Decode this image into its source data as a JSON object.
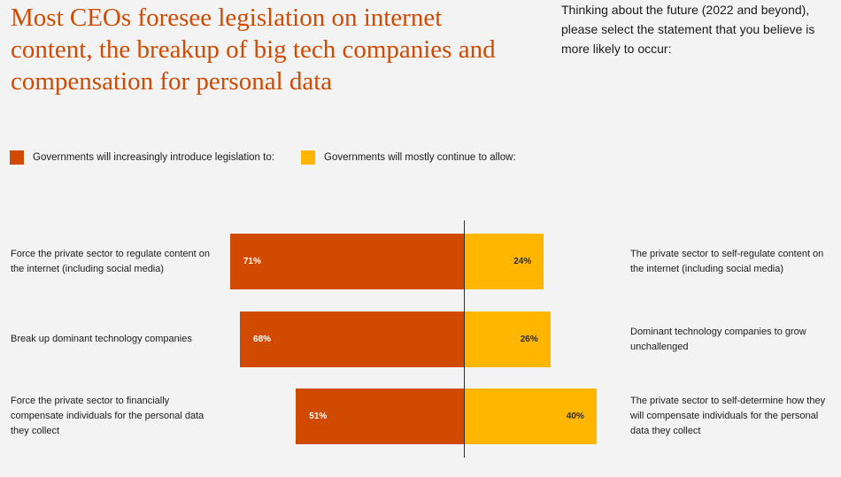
{
  "header": {
    "title": "Most CEOs foresee legislation on internet content, the breakup of big tech companies and compensation for personal data",
    "question": "Thinking about the future (2022 and beyond), please select the statement that you believe is more likely to occur:"
  },
  "colors": {
    "left": "#d04a02",
    "right": "#ffb600",
    "axis": "#2d2d2d"
  },
  "chart_data": {
    "type": "bar",
    "orientation": "horizontal-diverging",
    "title": "Most CEOs foresee legislation on internet content, the breakup of big tech companies and compensation for personal data",
    "xlim": [
      0,
      100
    ],
    "legend": [
      {
        "name": "Governments will increasingly introduce legislation to:",
        "color": "#d04a02"
      },
      {
        "name": "Governments will mostly continue to allow:",
        "color": "#ffb600"
      }
    ],
    "categories": [
      {
        "left_label": "Force the private sector to regulate content on the internet (including social media)",
        "right_label": "The private sector to self-regulate content on the internet (including social media)",
        "left_value": 71,
        "right_value": 24,
        "left_text": "71%",
        "right_text": "24%"
      },
      {
        "left_label": "Break up dominant technology companies",
        "right_label": "Dominant technology companies to grow unchallenged",
        "left_value": 68,
        "right_value": 26,
        "left_text": "68%",
        "right_text": "26%"
      },
      {
        "left_label": "Force the private sector to financially compensate individuals for the personal data they collect",
        "right_label": "The private sector to self-determine how they will compensate individuals for the personal data they collect",
        "left_value": 51,
        "right_value": 40,
        "left_text": "51%",
        "right_text": "40%"
      }
    ]
  }
}
